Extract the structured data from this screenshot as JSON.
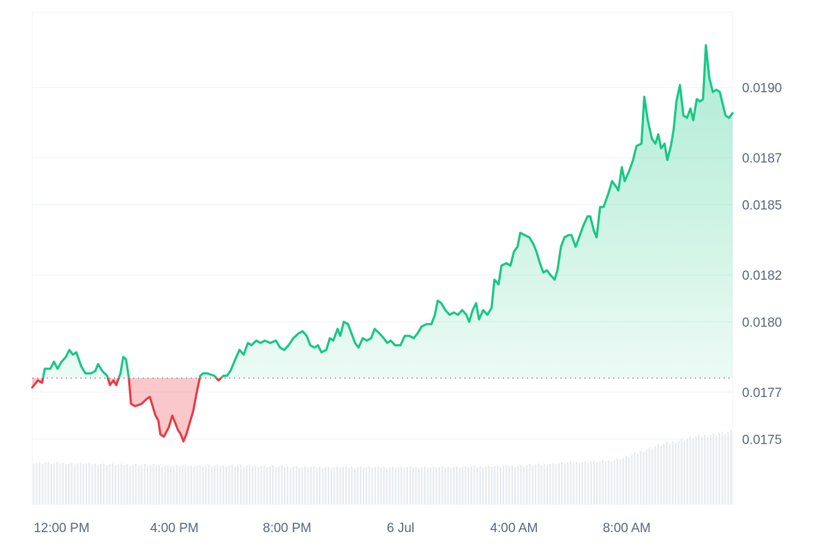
{
  "chart_data": {
    "type": "area",
    "baseline_value": 0.01776,
    "ylim": [
      0.01722,
      0.01932
    ],
    "y_ticks": [
      {
        "value": 0.0175,
        "label": "0.0175"
      },
      {
        "value": 0.0177,
        "label": "0.0177"
      },
      {
        "value": 0.018,
        "label": "0.0180"
      },
      {
        "value": 0.0182,
        "label": "0.0182"
      },
      {
        "value": 0.0185,
        "label": "0.0185"
      },
      {
        "value": 0.0187,
        "label": "0.0187"
      },
      {
        "value": 0.019,
        "label": "0.0190"
      }
    ],
    "x_range": [
      0,
      100
    ],
    "x_ticks": [
      {
        "value": 4.2,
        "label": "12:00 PM"
      },
      {
        "value": 20.3,
        "label": "4:00 PM"
      },
      {
        "value": 36.4,
        "label": "8:00 PM"
      },
      {
        "value": 52.6,
        "label": "6 Jul"
      },
      {
        "value": 68.8,
        "label": "4:00 AM"
      },
      {
        "value": 84.9,
        "label": "8:00 AM"
      }
    ],
    "grid": true,
    "up_color": "#16c784",
    "down_color": "#ea3943",
    "series": [
      {
        "values": [
          [
            0.0,
            0.01772
          ],
          [
            0.8,
            0.01775
          ],
          [
            1.4,
            0.01774
          ],
          [
            1.8,
            0.0178
          ],
          [
            2.6,
            0.0178
          ],
          [
            3.1,
            0.01783
          ],
          [
            3.6,
            0.0178
          ],
          [
            4.2,
            0.01783
          ],
          [
            4.8,
            0.01785
          ],
          [
            5.3,
            0.01788
          ],
          [
            5.8,
            0.01786
          ],
          [
            6.3,
            0.01787
          ],
          [
            7.0,
            0.01781
          ],
          [
            7.6,
            0.01778
          ],
          [
            8.4,
            0.01778
          ],
          [
            9.0,
            0.01779
          ],
          [
            9.4,
            0.01782
          ],
          [
            10.0,
            0.01779
          ],
          [
            10.7,
            0.01777
          ],
          [
            11.1,
            0.01773
          ],
          [
            11.6,
            0.01775
          ],
          [
            12.0,
            0.01773
          ],
          [
            12.6,
            0.01778
          ],
          [
            13.0,
            0.01785
          ],
          [
            13.4,
            0.01784
          ],
          [
            13.8,
            0.01776
          ],
          [
            14.1,
            0.01765
          ],
          [
            14.7,
            0.01764
          ],
          [
            15.6,
            0.01765
          ],
          [
            16.3,
            0.01767
          ],
          [
            16.8,
            0.01768
          ],
          [
            17.2,
            0.01764
          ],
          [
            17.6,
            0.0176
          ],
          [
            18.0,
            0.01758
          ],
          [
            18.3,
            0.01752
          ],
          [
            18.8,
            0.01751
          ],
          [
            19.5,
            0.01755
          ],
          [
            20.0,
            0.0176
          ],
          [
            20.4,
            0.01757
          ],
          [
            20.8,
            0.01754
          ],
          [
            21.2,
            0.01752
          ],
          [
            21.6,
            0.01749
          ],
          [
            22.0,
            0.01752
          ],
          [
            22.6,
            0.01758
          ],
          [
            23.0,
            0.01762
          ],
          [
            23.5,
            0.0177
          ],
          [
            24.0,
            0.01777
          ],
          [
            24.4,
            0.01778
          ],
          [
            25.0,
            0.01778
          ],
          [
            26.0,
            0.01777
          ],
          [
            26.6,
            0.01775
          ],
          [
            27.3,
            0.01777
          ],
          [
            27.8,
            0.01777
          ],
          [
            28.3,
            0.01779
          ],
          [
            29.0,
            0.01784
          ],
          [
            29.6,
            0.01788
          ],
          [
            30.2,
            0.01786
          ],
          [
            30.8,
            0.01791
          ],
          [
            31.3,
            0.0179
          ],
          [
            32.0,
            0.01792
          ],
          [
            32.6,
            0.01791
          ],
          [
            33.2,
            0.01792
          ],
          [
            34.0,
            0.01791
          ],
          [
            34.8,
            0.01792
          ],
          [
            35.4,
            0.01789
          ],
          [
            36.0,
            0.01788
          ],
          [
            36.6,
            0.0179
          ],
          [
            37.3,
            0.01793
          ],
          [
            38.0,
            0.01795
          ],
          [
            38.6,
            0.01796
          ],
          [
            39.2,
            0.01794
          ],
          [
            39.7,
            0.0179
          ],
          [
            40.3,
            0.01789
          ],
          [
            40.8,
            0.0179
          ],
          [
            41.3,
            0.01787
          ],
          [
            42.0,
            0.01788
          ],
          [
            42.5,
            0.01793
          ],
          [
            43.0,
            0.01792
          ],
          [
            43.6,
            0.01797
          ],
          [
            44.0,
            0.01794
          ],
          [
            44.5,
            0.018
          ],
          [
            45.1,
            0.01799
          ],
          [
            45.6,
            0.01795
          ],
          [
            46.1,
            0.01791
          ],
          [
            46.6,
            0.01789
          ],
          [
            47.2,
            0.01793
          ],
          [
            47.8,
            0.01792
          ],
          [
            48.4,
            0.01793
          ],
          [
            48.9,
            0.01797
          ],
          [
            49.6,
            0.01795
          ],
          [
            50.2,
            0.01793
          ],
          [
            50.7,
            0.01791
          ],
          [
            51.2,
            0.01792
          ],
          [
            51.8,
            0.0179
          ],
          [
            52.6,
            0.0179
          ],
          [
            53.2,
            0.01794
          ],
          [
            53.9,
            0.01794
          ],
          [
            54.5,
            0.01793
          ],
          [
            55.0,
            0.01795
          ],
          [
            55.6,
            0.01798
          ],
          [
            56.3,
            0.01799
          ],
          [
            57.0,
            0.01799
          ],
          [
            57.5,
            0.01803
          ],
          [
            57.9,
            0.01809
          ],
          [
            58.4,
            0.01808
          ],
          [
            59.0,
            0.01805
          ],
          [
            59.6,
            0.01803
          ],
          [
            60.2,
            0.01804
          ],
          [
            60.8,
            0.01803
          ],
          [
            61.4,
            0.01805
          ],
          [
            62.0,
            0.01803
          ],
          [
            62.4,
            0.018
          ],
          [
            62.9,
            0.01805
          ],
          [
            63.4,
            0.01808
          ],
          [
            63.8,
            0.01801
          ],
          [
            64.4,
            0.01805
          ],
          [
            65.0,
            0.01803
          ],
          [
            65.6,
            0.01806
          ],
          [
            66.0,
            0.01818
          ],
          [
            66.6,
            0.01816
          ],
          [
            67.0,
            0.01824
          ],
          [
            67.7,
            0.01825
          ],
          [
            68.3,
            0.01824
          ],
          [
            68.8,
            0.0183
          ],
          [
            69.3,
            0.01832
          ],
          [
            69.7,
            0.01838
          ],
          [
            70.3,
            0.01837
          ],
          [
            71.0,
            0.01836
          ],
          [
            71.6,
            0.01833
          ],
          [
            72.0,
            0.0183
          ],
          [
            72.5,
            0.01825
          ],
          [
            73.0,
            0.01821
          ],
          [
            73.5,
            0.01822
          ],
          [
            74.0,
            0.0182
          ],
          [
            74.6,
            0.01818
          ],
          [
            75.0,
            0.01822
          ],
          [
            75.5,
            0.01832
          ],
          [
            76.0,
            0.01836
          ],
          [
            76.6,
            0.01837
          ],
          [
            77.0,
            0.01837
          ],
          [
            77.6,
            0.01832
          ],
          [
            78.1,
            0.01836
          ],
          [
            78.7,
            0.01841
          ],
          [
            79.3,
            0.01845
          ],
          [
            79.7,
            0.01845
          ],
          [
            80.2,
            0.01839
          ],
          [
            80.6,
            0.01836
          ],
          [
            81.1,
            0.01849
          ],
          [
            81.6,
            0.01849
          ],
          [
            82.3,
            0.01855
          ],
          [
            82.8,
            0.0186
          ],
          [
            83.3,
            0.01858
          ],
          [
            83.7,
            0.01856
          ],
          [
            84.2,
            0.01866
          ],
          [
            84.6,
            0.0186
          ],
          [
            85.2,
            0.01864
          ],
          [
            85.8,
            0.01869
          ],
          [
            86.3,
            0.01875
          ],
          [
            87.0,
            0.01876
          ],
          [
            87.4,
            0.01896
          ],
          [
            87.9,
            0.01886
          ],
          [
            88.5,
            0.01878
          ],
          [
            89.0,
            0.01876
          ],
          [
            89.4,
            0.0188
          ],
          [
            89.8,
            0.01874
          ],
          [
            90.3,
            0.01876
          ],
          [
            90.7,
            0.01869
          ],
          [
            91.2,
            0.01875
          ],
          [
            91.6,
            0.01882
          ],
          [
            92.0,
            0.01894
          ],
          [
            92.5,
            0.01901
          ],
          [
            93.0,
            0.01888
          ],
          [
            93.5,
            0.01887
          ],
          [
            94.0,
            0.01891
          ],
          [
            94.4,
            0.01886
          ],
          [
            94.9,
            0.01895
          ],
          [
            95.4,
            0.01894
          ],
          [
            95.8,
            0.01895
          ],
          [
            96.2,
            0.01918
          ],
          [
            96.7,
            0.01904
          ],
          [
            97.2,
            0.01898
          ],
          [
            97.7,
            0.01899
          ],
          [
            98.2,
            0.01898
          ],
          [
            98.6,
            0.01893
          ],
          [
            99.0,
            0.01888
          ],
          [
            99.5,
            0.01887
          ],
          [
            100.0,
            0.01889
          ]
        ]
      }
    ],
    "volume_bars_relative": [
      [
        0,
        0.56
      ],
      [
        10,
        0.54
      ],
      [
        20,
        0.52
      ],
      [
        30,
        0.52
      ],
      [
        40,
        0.5
      ],
      [
        50,
        0.5
      ],
      [
        60,
        0.5
      ],
      [
        70,
        0.52
      ],
      [
        75,
        0.55
      ],
      [
        82,
        0.58
      ],
      [
        85,
        0.63
      ],
      [
        88,
        0.75
      ],
      [
        90,
        0.8
      ],
      [
        93,
        0.87
      ],
      [
        96,
        0.92
      ],
      [
        100,
        0.97
      ]
    ]
  }
}
